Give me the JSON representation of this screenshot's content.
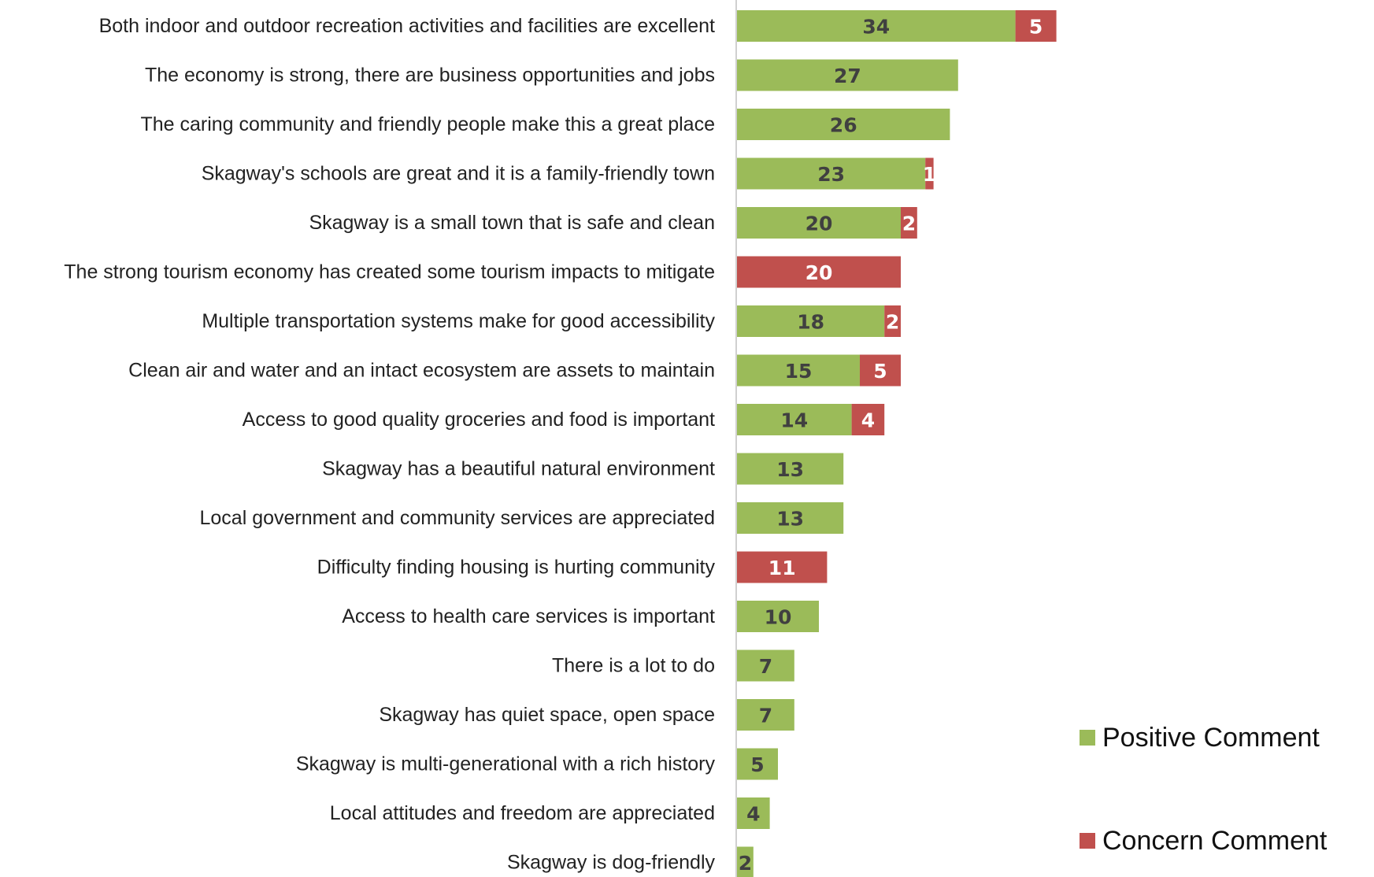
{
  "chart_data": {
    "type": "bar",
    "orientation": "horizontal",
    "stacked": true,
    "title": "",
    "xlabel": "",
    "ylabel": "",
    "xlim": [
      0,
      39
    ],
    "grid": false,
    "legend_position": "bottom-right",
    "categories": [
      "Both indoor and outdoor recreation activities and facilities are excellent",
      "The economy is strong, there are business opportunities and jobs",
      "The caring community and friendly people make this a great place",
      "Skagway's schools are great and it is a family-friendly town",
      "Skagway is a small town that is safe and clean",
      "The strong tourism economy has created some tourism impacts to mitigate",
      "Multiple transportation systems make for good accessibility",
      "Clean air and water and an intact ecosystem are assets to maintain",
      "Access to good quality groceries and food is important",
      "Skagway has a beautiful natural environment",
      "Local government and community services are appreciated",
      "Difficulty finding housing is hurting community",
      "Access to health care services is important",
      "There is a lot to do",
      "Skagway has quiet space, open space",
      "Skagway is multi-generational with a rich history",
      "Local attitudes and freedom are appreciated",
      "Skagway is dog-friendly"
    ],
    "series": [
      {
        "name": "Positive Comment",
        "color": "#9BBB59",
        "label_color": "#404040",
        "values": [
          34,
          27,
          26,
          23,
          20,
          0,
          18,
          15,
          14,
          13,
          13,
          0,
          10,
          7,
          7,
          5,
          4,
          2
        ]
      },
      {
        "name": "Concern Comment",
        "color": "#C0504D",
        "label_color": "#FFFFFF",
        "values": [
          5,
          0,
          0,
          1,
          2,
          20,
          2,
          5,
          4,
          0,
          0,
          11,
          0,
          0,
          0,
          0,
          0,
          0
        ]
      }
    ]
  }
}
